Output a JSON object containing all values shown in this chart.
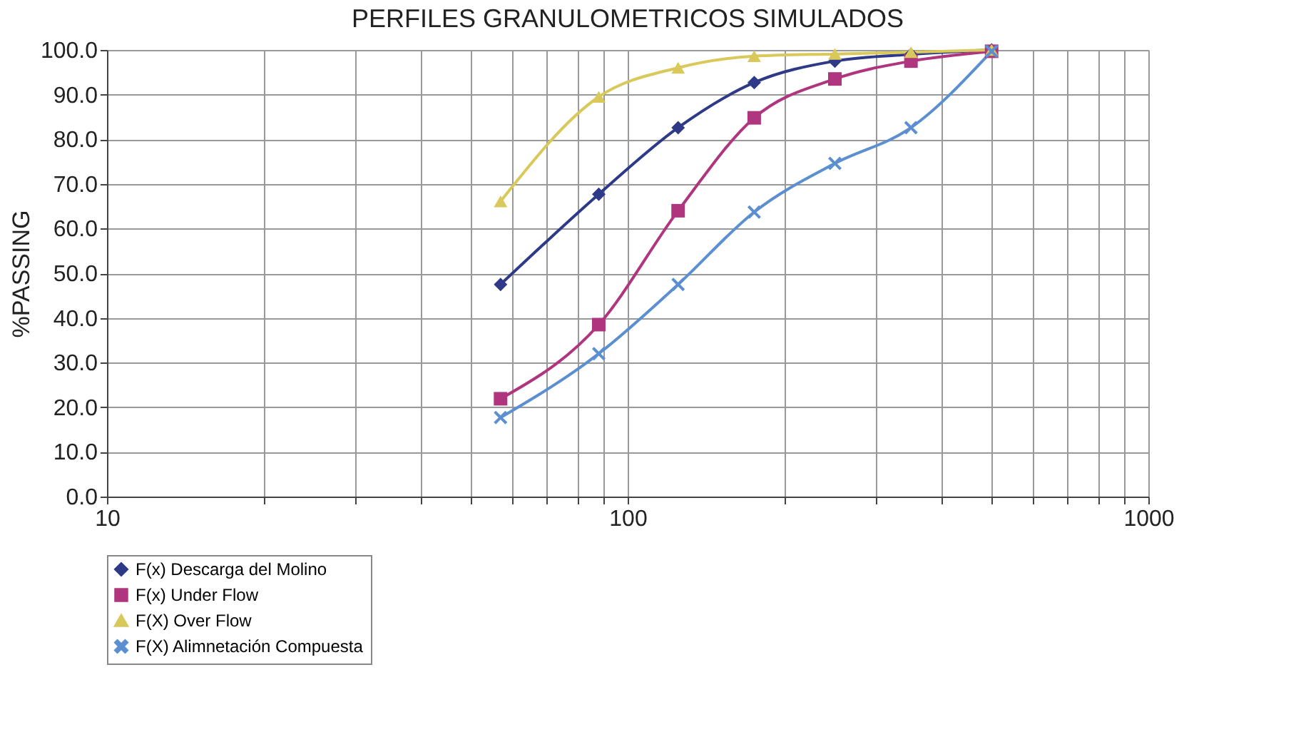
{
  "chart_data": {
    "type": "line",
    "title": "PERFILES GRANULOMETRICOS SIMULADOS",
    "ylabel": "%PASSING",
    "log": "x",
    "grid": true,
    "legend": "bottom",
    "line_style": "solid",
    "x": [
      57,
      88,
      125,
      175,
      250,
      350,
      500
    ],
    "xlim": [
      10,
      1000
    ],
    "xticks": [
      10,
      {
        "value": 20,
        "label": null
      },
      {
        "value": 30,
        "label": null
      },
      {
        "value": 40,
        "label": null
      },
      {
        "value": 50,
        "label": null
      },
      {
        "value": 60,
        "label": null
      },
      {
        "value": 70,
        "label": null
      },
      {
        "value": 80,
        "label": null
      },
      {
        "value": 90,
        "label": null
      },
      100,
      {
        "value": 200,
        "label": null
      },
      {
        "value": 300,
        "label": null
      },
      {
        "value": 400,
        "label": null
      },
      {
        "value": 500,
        "label": null
      },
      {
        "value": 600,
        "label": null
      },
      {
        "value": 700,
        "label": null
      },
      {
        "value": 800,
        "label": null
      },
      {
        "value": 900,
        "label": null
      },
      1000
    ],
    "ylim": [
      0,
      100
    ],
    "yticks": [
      {
        "value": 0,
        "label": "0.0"
      },
      {
        "value": 10,
        "label": "10.0"
      },
      {
        "value": 20,
        "label": "20.0"
      },
      {
        "value": 30,
        "label": "30.0"
      },
      {
        "value": 40,
        "label": "40.0"
      },
      {
        "value": 50,
        "label": "50.0"
      },
      {
        "value": 60,
        "label": "60.0"
      },
      {
        "value": 70,
        "label": "70.0"
      },
      {
        "value": 80,
        "label": "80.0"
      },
      {
        "value": 90,
        "label": "90.0"
      },
      {
        "value": 100,
        "label": "100.0"
      }
    ],
    "series": [
      {
        "name": "F(x) Descarga del Molino",
        "color": "#2e3a87",
        "marker": "diamond",
        "values": [
          47.5,
          67.7,
          82.6,
          92.7,
          97.5,
          99,
          100
        ]
      },
      {
        "name": "F(x) Under Flow",
        "color": "#b0357f",
        "marker": "square",
        "values": [
          21.9,
          38.5,
          64,
          84.8,
          93.5,
          97.5,
          99.7
        ]
      },
      {
        "name": "F(X) Over Flow",
        "color": "#d9c85a",
        "marker": "triangle",
        "values": [
          66.1,
          89.5,
          96,
          98.6,
          99.1,
          99.5,
          100
        ]
      },
      {
        "name": "F(X) Alimnetación Compuesta",
        "color": "#5b8fd0",
        "marker": "cross",
        "values": [
          17.7,
          32,
          47.5,
          63.7,
          74.6,
          82.6,
          99.7
        ]
      }
    ]
  }
}
